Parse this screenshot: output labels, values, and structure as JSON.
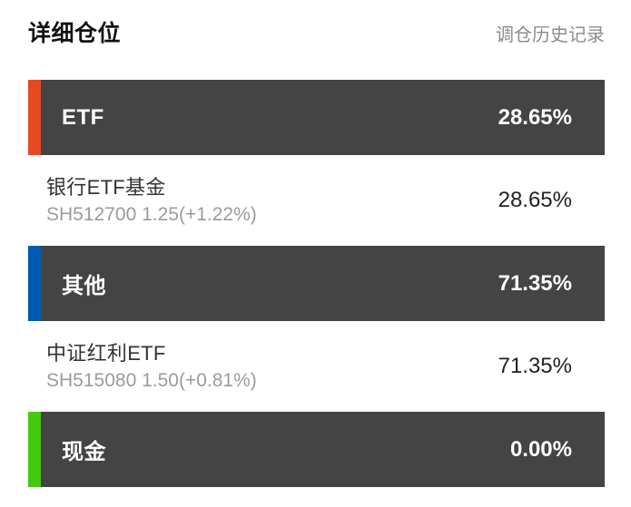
{
  "page": {
    "title": "详细仓位",
    "history_link": "调仓历史记录"
  },
  "colors": {
    "orange": "#e34a21",
    "blue": "#0059b2",
    "green": "#46c710",
    "row_dark": "#444444"
  },
  "positions": [
    {
      "type": "category",
      "accent": "orange",
      "label": "ETF",
      "percent": "28.65%"
    },
    {
      "type": "holding",
      "name": "银行ETF基金",
      "detail": "SH512700 1.25(+1.22%)",
      "percent": "28.65%"
    },
    {
      "type": "category",
      "accent": "blue",
      "label": "其他",
      "percent": "71.35%"
    },
    {
      "type": "holding",
      "name": "中证红利ETF",
      "detail": "SH515080 1.50(+0.81%)",
      "percent": "71.35%"
    },
    {
      "type": "category",
      "accent": "green",
      "label": "现金",
      "percent": "0.00%"
    }
  ]
}
